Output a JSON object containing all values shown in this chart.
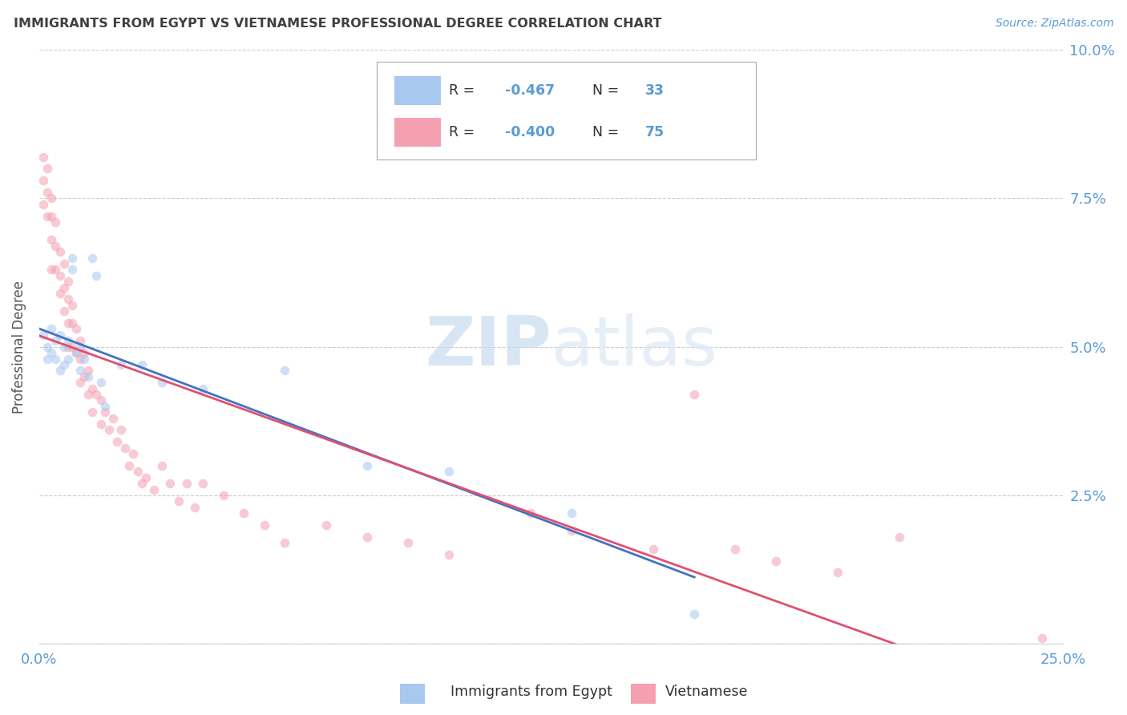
{
  "title": "IMMIGRANTS FROM EGYPT VS VIETNAMESE PROFESSIONAL DEGREE CORRELATION CHART",
  "source": "Source: ZipAtlas.com",
  "ylabel": "Professional Degree",
  "egypt_color": "#a8c8f0",
  "viet_color": "#f4a0b0",
  "egypt_line_color": "#4472c4",
  "viet_line_color": "#e05070",
  "title_color": "#404040",
  "label_color": "#5b9bd5",
  "watermark_color": "#dce8f5",
  "xlim": [
    0.0,
    0.25
  ],
  "ylim": [
    0.0,
    0.1
  ],
  "egypt_x": [
    0.001,
    0.002,
    0.002,
    0.003,
    0.003,
    0.004,
    0.004,
    0.005,
    0.005,
    0.006,
    0.006,
    0.007,
    0.007,
    0.008,
    0.008,
    0.009,
    0.01,
    0.01,
    0.011,
    0.012,
    0.013,
    0.014,
    0.015,
    0.016,
    0.02,
    0.025,
    0.03,
    0.04,
    0.06,
    0.08,
    0.1,
    0.13,
    0.16
  ],
  "egypt_y": [
    0.052,
    0.05,
    0.048,
    0.053,
    0.049,
    0.051,
    0.048,
    0.052,
    0.046,
    0.05,
    0.047,
    0.051,
    0.048,
    0.065,
    0.063,
    0.049,
    0.05,
    0.046,
    0.048,
    0.045,
    0.065,
    0.062,
    0.044,
    0.04,
    0.047,
    0.047,
    0.044,
    0.043,
    0.046,
    0.03,
    0.029,
    0.022,
    0.005
  ],
  "viet_x": [
    0.001,
    0.001,
    0.001,
    0.002,
    0.002,
    0.002,
    0.003,
    0.003,
    0.003,
    0.003,
    0.004,
    0.004,
    0.004,
    0.005,
    0.005,
    0.005,
    0.006,
    0.006,
    0.006,
    0.007,
    0.007,
    0.007,
    0.007,
    0.008,
    0.008,
    0.008,
    0.009,
    0.009,
    0.01,
    0.01,
    0.01,
    0.011,
    0.011,
    0.012,
    0.012,
    0.013,
    0.013,
    0.014,
    0.015,
    0.015,
    0.016,
    0.017,
    0.018,
    0.019,
    0.02,
    0.021,
    0.022,
    0.023,
    0.024,
    0.025,
    0.026,
    0.028,
    0.03,
    0.032,
    0.034,
    0.036,
    0.038,
    0.04,
    0.045,
    0.05,
    0.055,
    0.06,
    0.07,
    0.08,
    0.09,
    0.1,
    0.12,
    0.13,
    0.15,
    0.16,
    0.17,
    0.18,
    0.195,
    0.21,
    0.245
  ],
  "viet_y": [
    0.082,
    0.078,
    0.074,
    0.08,
    0.076,
    0.072,
    0.075,
    0.072,
    0.068,
    0.063,
    0.071,
    0.067,
    0.063,
    0.066,
    0.062,
    0.059,
    0.064,
    0.06,
    0.056,
    0.061,
    0.058,
    0.054,
    0.05,
    0.057,
    0.054,
    0.05,
    0.053,
    0.049,
    0.051,
    0.048,
    0.044,
    0.049,
    0.045,
    0.046,
    0.042,
    0.043,
    0.039,
    0.042,
    0.041,
    0.037,
    0.039,
    0.036,
    0.038,
    0.034,
    0.036,
    0.033,
    0.03,
    0.032,
    0.029,
    0.027,
    0.028,
    0.026,
    0.03,
    0.027,
    0.024,
    0.027,
    0.023,
    0.027,
    0.025,
    0.022,
    0.02,
    0.017,
    0.02,
    0.018,
    0.017,
    0.015,
    0.022,
    0.019,
    0.016,
    0.042,
    0.016,
    0.014,
    0.012,
    0.018,
    0.001
  ],
  "grid_color": "#cccccc",
  "background_color": "#ffffff",
  "marker_size": 70,
  "marker_alpha": 0.55,
  "legend_egypt_text": "R =  −0.467   N = 33",
  "legend_viet_text": "R =  −0.400   N = 75",
  "legend_egypt_val": "-0.467",
  "legend_viet_val": "-0.400",
  "legend_egypt_n": "33",
  "legend_viet_n": "75"
}
